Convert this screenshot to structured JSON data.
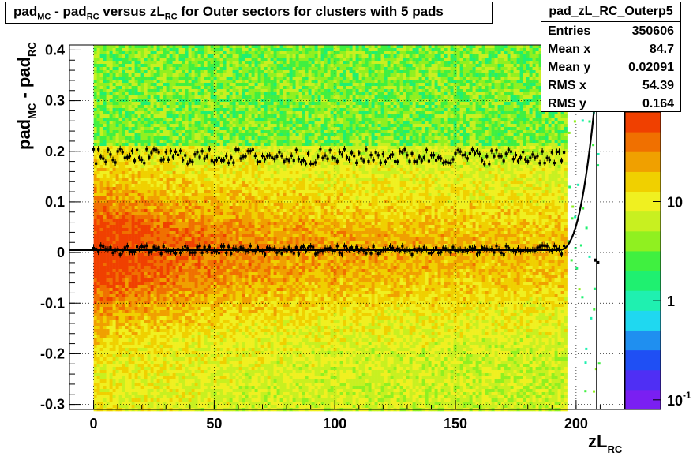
{
  "title_parts": [
    "pad",
    "MC",
    " - pad",
    "RC",
    " versus zL",
    "RC",
    " for Outer sectors for clusters with 5 pads"
  ],
  "stats": {
    "name": "pad_zL_RC_Outerp5",
    "rows": [
      {
        "label": "Entries",
        "value": "350606"
      },
      {
        "label": "Mean x",
        "value": "84.7"
      },
      {
        "label": "Mean y",
        "value": "0.02091"
      },
      {
        "label": "RMS x",
        "value": "54.39"
      },
      {
        "label": "RMS y",
        "value": "0.164"
      }
    ]
  },
  "colors": {
    "palette": [
      "#7a1ff2",
      "#4f2ff4",
      "#1f4ff4",
      "#1f8ff0",
      "#1fd8f0",
      "#1ff0b0",
      "#1ff070",
      "#40f040",
      "#90f020",
      "#c8f020",
      "#f0f020",
      "#f0d000",
      "#f0a000",
      "#f07000",
      "#f04000"
    ],
    "fit_line": "#000000"
  },
  "chart_data": {
    "type": "heatmap",
    "title": "pad_MC - pad_RC versus zL_RC for Outer sectors for clusters with 5 pads",
    "xlabel_main": "zL",
    "xlabel_sub": "RC",
    "ylabel_main": "pad",
    "ylabel_sub1": "MC",
    "ylabel_mid": " - pad",
    "ylabel_sub2": "RC",
    "xlim": [
      -10,
      220
    ],
    "ylim": [
      -0.31,
      0.41
    ],
    "xticks": [
      {
        "v": 0,
        "label": "0"
      },
      {
        "v": 50,
        "label": "50"
      },
      {
        "v": 100,
        "label": "100"
      },
      {
        "v": 150,
        "label": "150"
      },
      {
        "v": 200,
        "label": "200"
      }
    ],
    "yticks": [
      {
        "v": -0.3,
        "label": "-0.3"
      },
      {
        "v": -0.2,
        "label": "-0.2"
      },
      {
        "v": -0.1,
        "label": "-0.1"
      },
      {
        "v": 0,
        "label": "0"
      },
      {
        "v": 0.1,
        "label": "0.1"
      },
      {
        "v": 0.2,
        "label": "0.2"
      },
      {
        "v": 0.3,
        "label": "0.3"
      },
      {
        "v": 0.4,
        "label": "0.4"
      }
    ],
    "grid": true,
    "z_scale": "log",
    "zlim": [
      0.08,
      80
    ],
    "zticks": [
      {
        "v": 0.1,
        "label": "10",
        "exp": "-1"
      },
      {
        "v": 1,
        "label": "1",
        "exp": ""
      },
      {
        "v": 10,
        "label": "10",
        "exp": ""
      }
    ],
    "data_x_range": [
      0,
      195
    ],
    "dense_band_y_range": [
      -0.31,
      0.21
    ],
    "series": [
      {
        "mean_y": 0.19,
        "x_range": [
          0,
          195
        ],
        "marker": "points"
      },
      {
        "mean_y": 0.005,
        "x_range": [
          0,
          195
        ],
        "marker": "points"
      }
    ],
    "fit": {
      "x_start": -10,
      "y0": 0.005,
      "rise_start_x": 193,
      "end_x": 210,
      "end_y": 0.41
    },
    "vertical_lines_x": [
      208.5
    ],
    "extra_points": [
      {
        "x": 208,
        "y": -0.015
      },
      {
        "x": 209,
        "y": -0.02
      }
    ]
  }
}
